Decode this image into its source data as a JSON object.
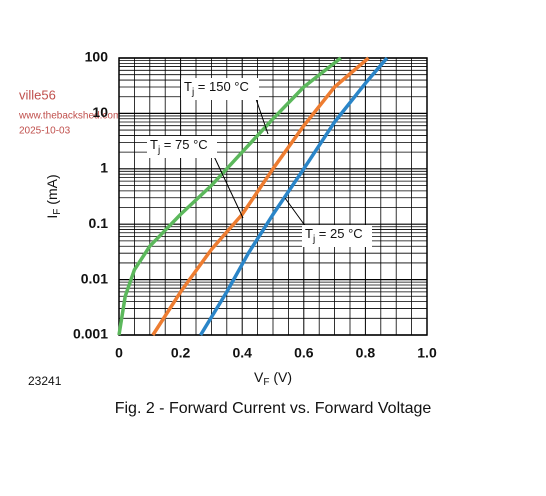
{
  "chart_data": {
    "type": "line",
    "watermark": [
      "ville56",
      "www.thebackshed.com",
      "2025-10-03"
    ],
    "code": "23241",
    "caption": "Fig. 2 - Forward Current vs. Forward Voltage",
    "xlabel": {
      "main": "V",
      "sub": "F",
      "text": " (V)"
    },
    "ylabel": {
      "main": "I",
      "sub": "F",
      "text": " (mA)"
    },
    "xlim": [
      0,
      1
    ],
    "xticks": [
      0,
      0.2,
      0.4,
      0.6,
      0.8,
      {
        "value": 1,
        "label": "1.0"
      }
    ],
    "ylim": [
      0.001,
      100
    ],
    "yticks": [
      0.001,
      0.01,
      0.1,
      1,
      10,
      100
    ],
    "log_y": true,
    "grid": true,
    "minor_grid": true,
    "series": [
      {
        "label": {
          "main": "T",
          "sub": "j",
          "text": " = 150 °C"
        },
        "color": "#5cb85c",
        "x": [
          0,
          0.02,
          0.05,
          0.1,
          0.2,
          0.3,
          0.4,
          0.5,
          0.6,
          0.72
        ],
        "values": [
          0.001,
          0.005,
          0.015,
          0.04,
          0.15,
          0.5,
          2,
          8,
          30,
          100
        ]
      },
      {
        "label": {
          "main": "T",
          "sub": "j",
          "text": " = 75 °C"
        },
        "color": "#ee7d31",
        "x": [
          0.11,
          0.2,
          0.3,
          0.4,
          0.5,
          0.6,
          0.7,
          0.81
        ],
        "values": [
          0.001,
          0.006,
          0.035,
          0.15,
          1,
          6,
          30,
          100
        ]
      },
      {
        "label": {
          "main": "T",
          "sub": "j",
          "text": " = 25 °C"
        },
        "color": "#2a85c8",
        "x": [
          0.265,
          0.35,
          0.42,
          0.5,
          0.6,
          0.7,
          0.8,
          0.87
        ],
        "values": [
          0.001,
          0.006,
          0.03,
          0.15,
          1,
          7,
          35,
          100
        ]
      }
    ]
  }
}
